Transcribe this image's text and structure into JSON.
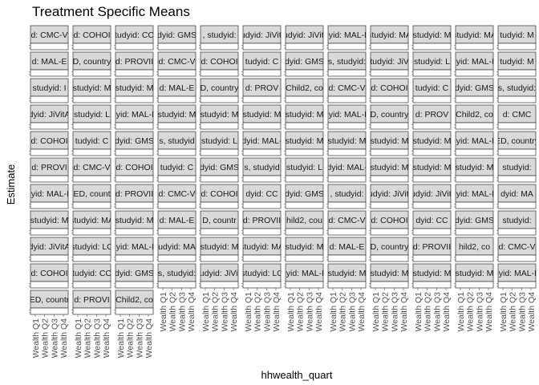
{
  "chart_data": {
    "type": "scatter",
    "title": "Treatment Specific Means",
    "xlabel": "hhwealth_quart",
    "ylabel": "Estimate",
    "x_categories": [
      "Wealth Q1",
      "Wealth Q2",
      "Wealth Q3",
      "Wealth Q4"
    ],
    "facet_grid": {
      "columns": 12,
      "rows": 11
    },
    "facet_strips": [
      "d: CMC-V",
      "d: COHOI",
      "tudyid: CC",
      "dyid: GMS",
      ", studyid:",
      "studyid: JiVitA-",
      "studyid: JiVitA-",
      "dyid: MAL-E",
      "studyid: MA",
      "studyid: M",
      "studyid: MA",
      "tudyid: M",
      "d: MAL-E",
      "D, country",
      "d: PROVII",
      "d: CMC-V",
      "d: COHOI",
      "tudyid: C",
      "dyid: GMS",
      "s, studyid:",
      "studyid: JiVit",
      "studyid: L",
      "dyid: MAL-E",
      "tudyid: M",
      "studyid: I",
      "studyid: M",
      "studyid: M",
      "d: MAL-E",
      "D, country",
      "d: PROV",
      "Child2, co",
      "d: CMC-V",
      "d: COHOI",
      "tudyid: C",
      "dyid: GMS",
      "s, studyid:",
      "dyid: JiVitA",
      "studyid: L",
      "dyid: MAL-E",
      "studyid: M",
      "studyid: M",
      "studyid: M",
      "studyid: M",
      "dyid: MAL-E",
      "D, country",
      "d: PROV",
      "Child2, co",
      "d: CMC",
      "d: COHOI",
      "tudyid: C",
      "dyid: GMS",
      "s, studyid",
      "studyid: L",
      "dyid: MAL-",
      "studyid: M",
      "studyid: M",
      "studyid: M",
      "studyid: M",
      "dyid: MAL-E",
      "ED, country",
      "d: PROVI",
      "d: CMC-V",
      "d: COHOI",
      "tudyid: C",
      "dyid: GMS",
      "s, studyid",
      "studyid: L",
      "dyid: MAL-",
      "studyid: M",
      "studyid: M",
      "studyid: M",
      "studyid:",
      "dyid: MAL-E",
      "ED, count",
      "d: PROVII",
      "d: CMC-V",
      "d: COHOI",
      "dyid: CC",
      "dyid: GMS",
      ", studyid:",
      "studyid: JiVitA-",
      "studyid: JiVitA-",
      "dyid: MAL-E",
      "dyid: MA",
      "studyid: M",
      "studyid: MA",
      "studyid: M",
      "d: MAL-E",
      "D, countr",
      "d: PROVII",
      "hild2, cou",
      "d: CMC-V",
      "d: COHOI",
      "dyid: CC",
      "dyid: GMS",
      "studyid:",
      "dyid: JiVitA",
      "studyid: LC",
      "dyid: MAL-E",
      "udyid: MA",
      "studyid: M",
      "studyid: MA",
      "studyid: M",
      "d: MAL-E",
      "D, country",
      "d: PROVII",
      "hild2, co",
      "d: CMC-V",
      "d: COHOI",
      "tudyid: CC",
      "dyid: GMS",
      "s, studyid:",
      "studyid: JiVitA",
      "studyid: LC",
      "dyid: MAL-E",
      "studyid: M",
      "studyid: M",
      "studyid: M",
      "studyid: M",
      "dyid: MAL-E",
      "ED, countr",
      "d: PROVI",
      "Child2, co"
    ]
  },
  "colors": {
    "background": "#ffffff",
    "panel_background": "#ffffff",
    "strip_fill": "#d9d9d9",
    "strip_border": "#333333",
    "panel_border": "#333333",
    "text": "#1a1a1a",
    "tick_text": "#4d4d4d"
  }
}
